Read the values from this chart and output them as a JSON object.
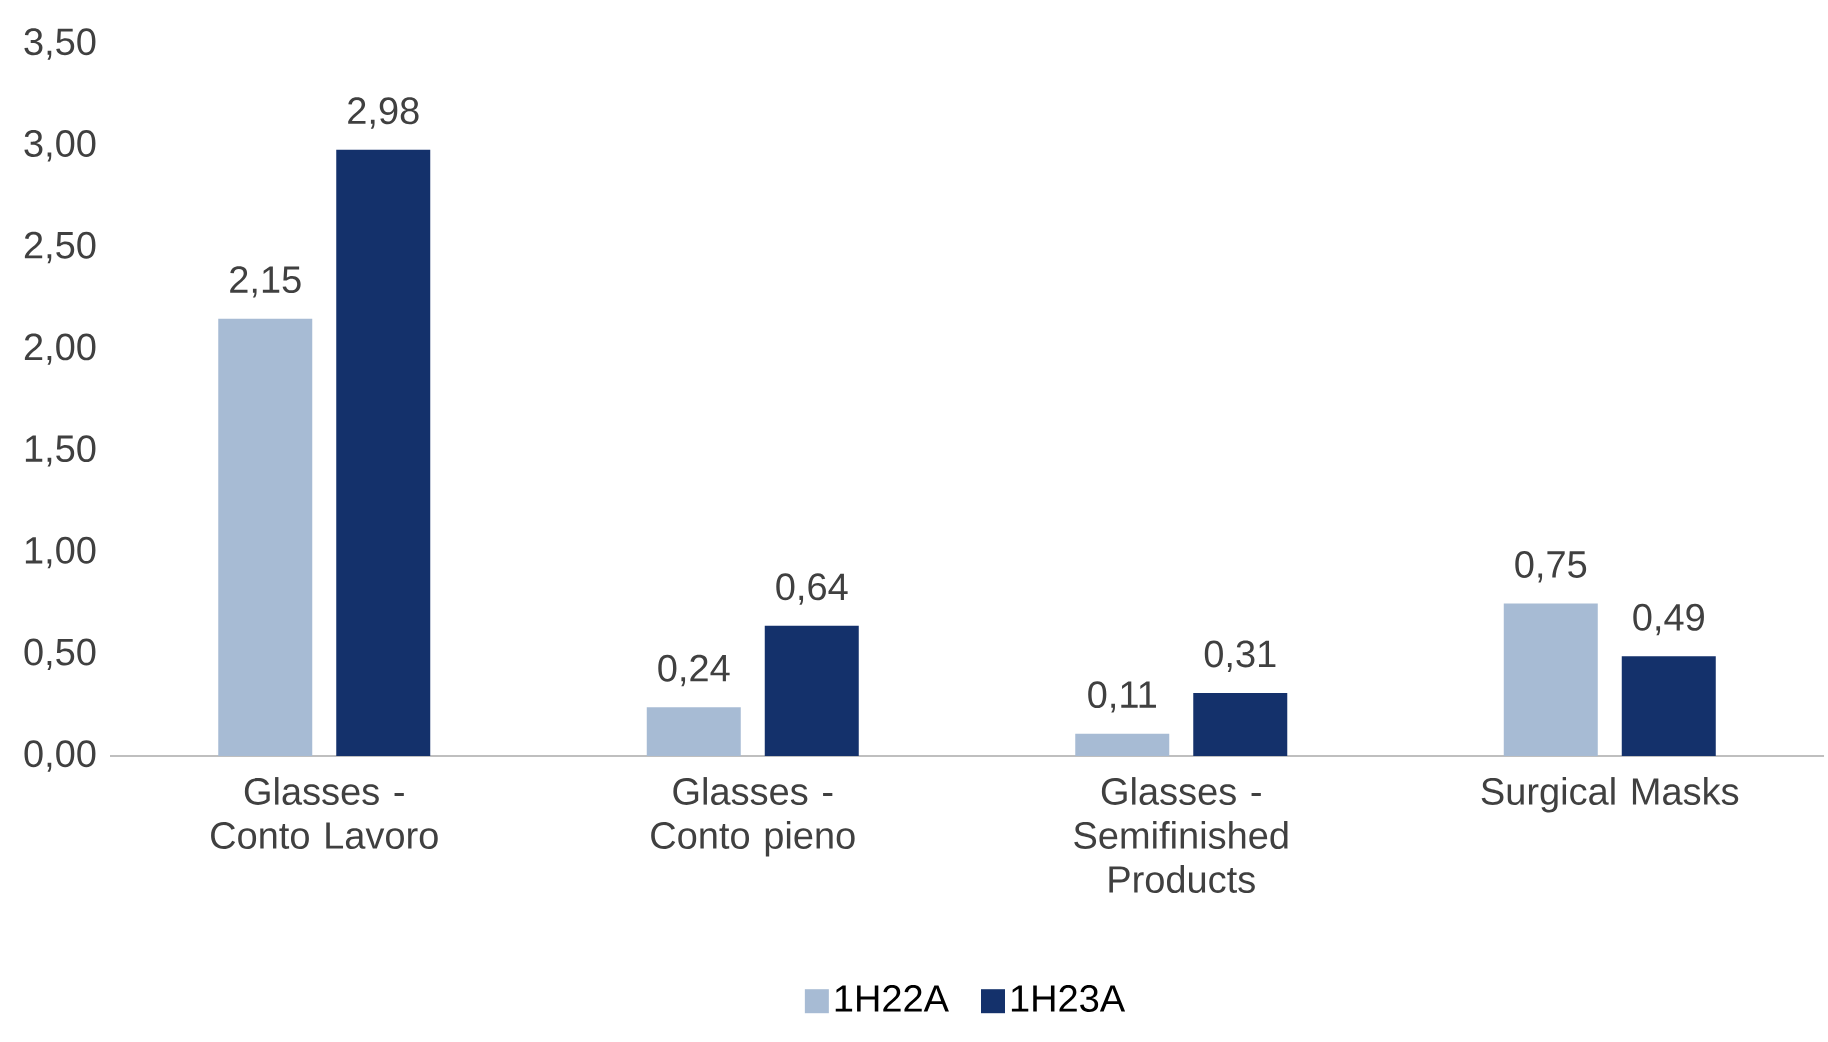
{
  "chart_data": {
    "type": "bar",
    "categories": [
      "Glasses - Conto Lavoro",
      "Glasses - Conto pieno",
      "Glasses - Semifinished Products",
      "Surgical Masks"
    ],
    "series": [
      {
        "name": "1H22A",
        "color": "#a7bbd4",
        "values": [
          2.15,
          0.24,
          0.11,
          0.75
        ],
        "value_labels": [
          "2,15",
          "0,24",
          "0,11",
          "0,75"
        ]
      },
      {
        "name": "1H23A",
        "color": "#14316b",
        "values": [
          2.98,
          0.64,
          0.31,
          0.49
        ],
        "value_labels": [
          "2,98",
          "0,64",
          "0,31",
          "0,49"
        ]
      }
    ],
    "ylim": [
      0,
      3.5
    ],
    "yticks": [
      {
        "value": 0,
        "label": "0,00"
      },
      {
        "value": 0.5,
        "label": "0,50"
      },
      {
        "value": 1,
        "label": "1,00"
      },
      {
        "value": 1.5,
        "label": "1,50"
      },
      {
        "value": 2,
        "label": "2,00"
      },
      {
        "value": 2.5,
        "label": "2,50"
      },
      {
        "value": 3,
        "label": "3,00"
      },
      {
        "value": 3.5,
        "label": "3,50"
      }
    ],
    "grid": false,
    "legend": "bottom"
  }
}
